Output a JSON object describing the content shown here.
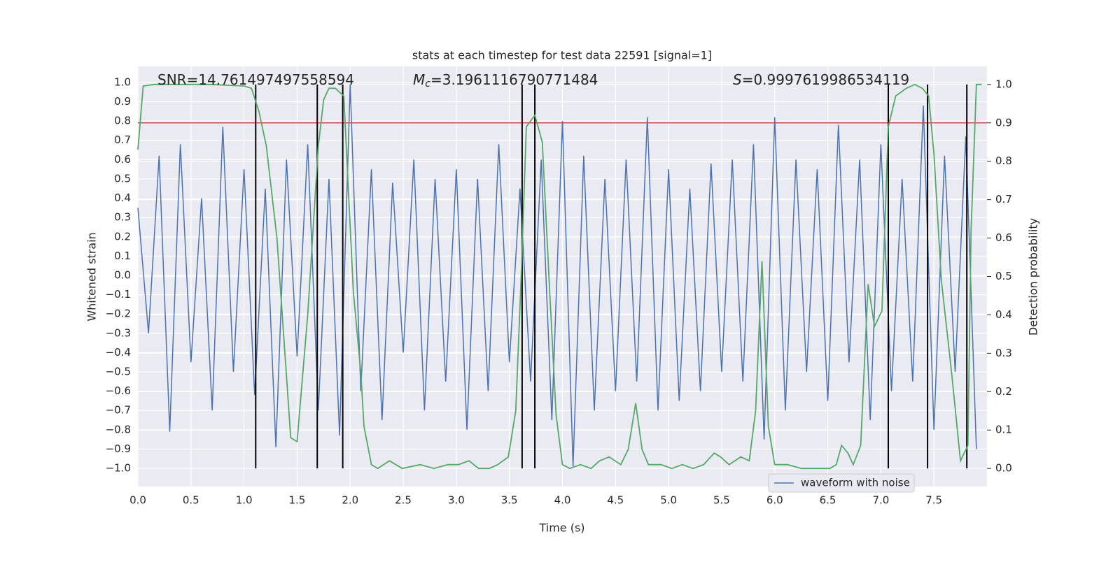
{
  "chart_data": {
    "type": "line",
    "title": "stats at each timestep for test data 22591 [signal=1]",
    "xlabel": "Time (s)",
    "ylabel": "Whitened strain",
    "y2label": "Detection probability",
    "annotations": [
      {
        "symbol": "",
        "subscript": "",
        "text": "SNR=14.761497497558594"
      },
      {
        "symbol": "M",
        "subscript": "c",
        "text": "=3.1961116790771484"
      },
      {
        "symbol": "S",
        "subscript": "",
        "text": "=0.9997619986534119"
      }
    ],
    "xlim": [
      0,
      8.0
    ],
    "ylim": [
      -1.094,
      1.083
    ],
    "y2lim": [
      -0.047,
      1.047
    ],
    "xticks": [
      {
        "value": 0,
        "label": "0.0"
      },
      {
        "value": 0.5,
        "label": "0.5"
      },
      {
        "value": 1,
        "label": "1.0"
      },
      {
        "value": 1.5,
        "label": "1.5"
      },
      {
        "value": 2,
        "label": "2.0"
      },
      {
        "value": 2.5,
        "label": "2.5"
      },
      {
        "value": 3,
        "label": "3.0"
      },
      {
        "value": 3.5,
        "label": "3.5"
      },
      {
        "value": 4,
        "label": "4.0"
      },
      {
        "value": 4.5,
        "label": "4.5"
      },
      {
        "value": 5,
        "label": "5.0"
      },
      {
        "value": 5.5,
        "label": "5.5"
      },
      {
        "value": 6,
        "label": "6.0"
      },
      {
        "value": 6.5,
        "label": "6.5"
      },
      {
        "value": 7,
        "label": "7.0"
      },
      {
        "value": 7.5,
        "label": "7.5"
      }
    ],
    "yticks": [
      {
        "value": -1,
        "label": "−1.0"
      },
      {
        "value": -0.9,
        "label": "−0.9"
      },
      {
        "value": -0.8,
        "label": "−0.8"
      },
      {
        "value": -0.7,
        "label": "−0.7"
      },
      {
        "value": -0.6,
        "label": "−0.6"
      },
      {
        "value": -0.5,
        "label": "−0.5"
      },
      {
        "value": -0.4,
        "label": "−0.4"
      },
      {
        "value": -0.3,
        "label": "−0.3"
      },
      {
        "value": -0.2,
        "label": "−0.2"
      },
      {
        "value": -0.1,
        "label": "−0.1"
      },
      {
        "value": 0,
        "label": "0.0"
      },
      {
        "value": 0.1,
        "label": "0.1"
      },
      {
        "value": 0.2,
        "label": "0.2"
      },
      {
        "value": 0.3,
        "label": "0.3"
      },
      {
        "value": 0.4,
        "label": "0.4"
      },
      {
        "value": 0.5,
        "label": "0.5"
      },
      {
        "value": 0.6,
        "label": "0.6"
      },
      {
        "value": 0.7,
        "label": "0.7"
      },
      {
        "value": 0.8,
        "label": "0.8"
      },
      {
        "value": 0.9,
        "label": "0.9"
      },
      {
        "value": 1,
        "label": "1.0"
      }
    ],
    "y2ticks": [
      {
        "value": 0,
        "label": "0.0"
      },
      {
        "value": 0.1,
        "label": "0.1"
      },
      {
        "value": 0.2,
        "label": "0.2"
      },
      {
        "value": 0.3,
        "label": "0.3"
      },
      {
        "value": 0.4,
        "label": "0.4"
      },
      {
        "value": 0.5,
        "label": "0.5"
      },
      {
        "value": 0.6,
        "label": "0.6"
      },
      {
        "value": 0.7,
        "label": "0.7"
      },
      {
        "value": 0.8,
        "label": "0.8"
      },
      {
        "value": 0.9,
        "label": "0.9"
      },
      {
        "value": 1,
        "label": "1.0"
      }
    ],
    "grid": true,
    "legend": "lower right",
    "series": [
      {
        "name": "waveform with noise",
        "color": "#4c72b0",
        "axis": "y",
        "x": [
          0,
          0.1,
          0.2,
          0.3,
          0.4,
          0.5,
          0.6,
          0.7,
          0.8,
          0.9,
          1,
          1.1,
          1.2,
          1.3,
          1.4,
          1.5,
          1.6,
          1.7,
          1.8,
          1.9,
          2,
          2.1,
          2.2,
          2.3,
          2.4,
          2.5,
          2.6,
          2.7,
          2.8,
          2.9,
          3,
          3.1,
          3.2,
          3.3,
          3.4,
          3.5,
          3.6,
          3.7,
          3.8,
          3.9,
          4,
          4.1,
          4.2,
          4.3,
          4.4,
          4.5,
          4.6,
          4.7,
          4.8,
          4.9,
          5,
          5.1,
          5.2,
          5.3,
          5.4,
          5.5,
          5.6,
          5.7,
          5.8,
          5.9,
          6,
          6.1,
          6.2,
          6.3,
          6.4,
          6.5,
          6.6,
          6.7,
          6.8,
          6.9,
          7,
          7.1,
          7.2,
          7.3,
          7.4,
          7.5,
          7.6,
          7.7,
          7.8,
          7.9
        ],
        "values": [
          0.35,
          -0.3,
          0.62,
          -0.81,
          0.68,
          -0.45,
          0.4,
          -0.7,
          0.77,
          -0.5,
          0.55,
          -0.62,
          0.45,
          -0.89,
          0.6,
          -0.42,
          0.68,
          -0.7,
          0.5,
          -0.83,
          0.99,
          -0.6,
          0.55,
          -0.75,
          0.48,
          -0.4,
          0.6,
          -0.7,
          0.5,
          -0.55,
          0.55,
          -0.8,
          0.5,
          -0.6,
          0.68,
          -0.45,
          0.45,
          -0.55,
          0.6,
          -0.75,
          0.8,
          -0.99,
          0.62,
          -0.7,
          0.5,
          -0.6,
          0.6,
          -0.55,
          0.82,
          -0.7,
          0.55,
          -0.65,
          0.45,
          -0.6,
          0.58,
          -0.5,
          0.6,
          -0.55,
          0.68,
          -0.85,
          0.82,
          -0.7,
          0.6,
          -0.5,
          0.55,
          -0.65,
          0.78,
          -0.45,
          0.6,
          -0.75,
          0.68,
          -0.6,
          0.5,
          -0.55,
          0.88,
          -0.8,
          0.62,
          -0.5,
          0.72,
          -0.9
        ]
      }
    ],
    "probability_line": {
      "color": "#55a868",
      "axis": "y2",
      "x": [
        0,
        0.05,
        0.15,
        0.68,
        1.0,
        1.07,
        1.14,
        1.21,
        1.31,
        1.44,
        1.5,
        1.6,
        1.7,
        1.75,
        1.8,
        1.86,
        1.94,
        2.03,
        2.1,
        2.13,
        2.2,
        2.26,
        2.37,
        2.49,
        2.66,
        2.79,
        2.92,
        3.02,
        3.12,
        3.21,
        3.31,
        3.39,
        3.49,
        3.56,
        3.61,
        3.66,
        3.74,
        3.81,
        3.88,
        3.94,
        4.0,
        4.07,
        4.17,
        4.27,
        4.35,
        4.44,
        4.55,
        4.62,
        4.69,
        4.75,
        4.81,
        4.93,
        5.03,
        5.13,
        5.23,
        5.33,
        5.43,
        5.49,
        5.57,
        5.68,
        5.76,
        5.82,
        5.88,
        5.94,
        6.0,
        6.12,
        6.25,
        6.52,
        6.58,
        6.63,
        6.69,
        6.74,
        6.81,
        6.88,
        6.94,
        7.01,
        7.07,
        7.14,
        7.24,
        7.32,
        7.39,
        7.45,
        7.5,
        7.57,
        7.67,
        7.75,
        7.82,
        7.85,
        7.9,
        7.95
      ],
      "values": [
        0.83,
        0.996,
        1.0,
        1.0,
        0.996,
        0.99,
        0.93,
        0.84,
        0.6,
        0.08,
        0.07,
        0.4,
        0.84,
        0.96,
        0.99,
        0.99,
        0.97,
        0.46,
        0.25,
        0.11,
        0.01,
        0.0,
        0.02,
        0.0,
        0.01,
        0.0,
        0.01,
        0.01,
        0.02,
        0.0,
        0.0,
        0.01,
        0.03,
        0.15,
        0.49,
        0.89,
        0.92,
        0.85,
        0.46,
        0.14,
        0.01,
        0.0,
        0.01,
        0.0,
        0.02,
        0.03,
        0.01,
        0.05,
        0.17,
        0.05,
        0.01,
        0.01,
        0.0,
        0.01,
        0.0,
        0.01,
        0.04,
        0.03,
        0.01,
        0.03,
        0.02,
        0.15,
        0.54,
        0.11,
        0.01,
        0.01,
        0.0,
        0.0,
        0.01,
        0.06,
        0.04,
        0.01,
        0.06,
        0.48,
        0.37,
        0.41,
        0.89,
        0.97,
        0.99,
        1.0,
        0.99,
        0.97,
        0.82,
        0.49,
        0.24,
        0.02,
        0.06,
        0.62,
        1.0,
        1.0
      ]
    },
    "threshold": {
      "value": 0.9,
      "axis": "y2",
      "color": "#c44e52"
    },
    "vlines": {
      "x": [
        1.11,
        1.69,
        1.93,
        3.62,
        3.74,
        7.07,
        7.44,
        7.81
      ],
      "color": "#000000"
    }
  }
}
